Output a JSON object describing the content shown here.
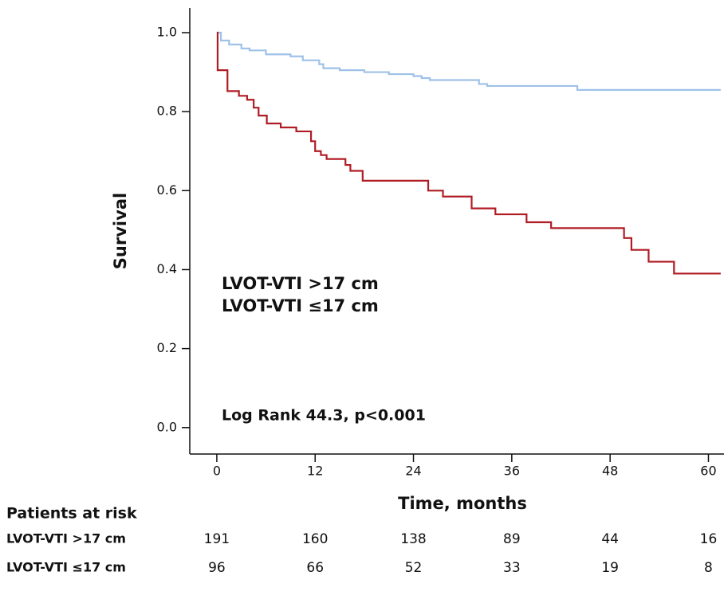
{
  "chart_data": {
    "type": "line",
    "step": "post",
    "y_label": "Survival",
    "x_label": "Time, months",
    "annotation": "Log Rank 44.3, p<0.001",
    "xlim": [
      -3.3,
      61.9
    ],
    "ylim": [
      -0.067,
      1.0625
    ],
    "xticks": [
      0,
      12,
      24,
      36,
      48,
      60
    ],
    "yticks": [
      {
        "value": 0,
        "label": "0.0"
      },
      0.2,
      0.4,
      0.6,
      0.8,
      {
        "value": 1,
        "label": "1.0"
      }
    ],
    "risk_title": "Patients at risk",
    "series": [
      {
        "name": "LVOT-VTI >17 cm",
        "color": "#9fc1e8",
        "x": [
          0,
          0.5,
          1.5,
          3,
          4,
          6,
          9,
          10.5,
          12.5,
          13,
          15,
          18,
          21,
          24,
          25,
          26,
          32,
          33,
          44,
          61.5
        ],
        "values": [
          1.0,
          0.98,
          0.97,
          0.96,
          0.955,
          0.945,
          0.94,
          0.93,
          0.92,
          0.91,
          0.905,
          0.9,
          0.895,
          0.89,
          0.885,
          0.88,
          0.87,
          0.865,
          0.855,
          0.855
        ],
        "at_risk": [
          191,
          160,
          138,
          89,
          44,
          16
        ]
      },
      {
        "name": "LVOT-VTI ≤17 cm",
        "color": "#b01c24",
        "x": [
          0,
          0.1,
          1.3,
          2.7,
          3.7,
          4.5,
          5.1,
          6.1,
          7.8,
          9.7,
          11.5,
          12,
          12.7,
          13.4,
          15.7,
          16.3,
          17.8,
          25.8,
          27.6,
          31.1,
          34,
          37.8,
          40.8,
          49.7,
          50.6,
          52.7,
          55.8,
          61.5
        ],
        "values": [
          1.0,
          0.905,
          0.852,
          0.84,
          0.83,
          0.81,
          0.79,
          0.77,
          0.76,
          0.75,
          0.725,
          0.7,
          0.69,
          0.68,
          0.665,
          0.65,
          0.625,
          0.6,
          0.585,
          0.555,
          0.54,
          0.52,
          0.505,
          0.48,
          0.45,
          0.42,
          0.39,
          0.39
        ],
        "at_risk": [
          96,
          66,
          52,
          33,
          19,
          8
        ]
      }
    ]
  }
}
